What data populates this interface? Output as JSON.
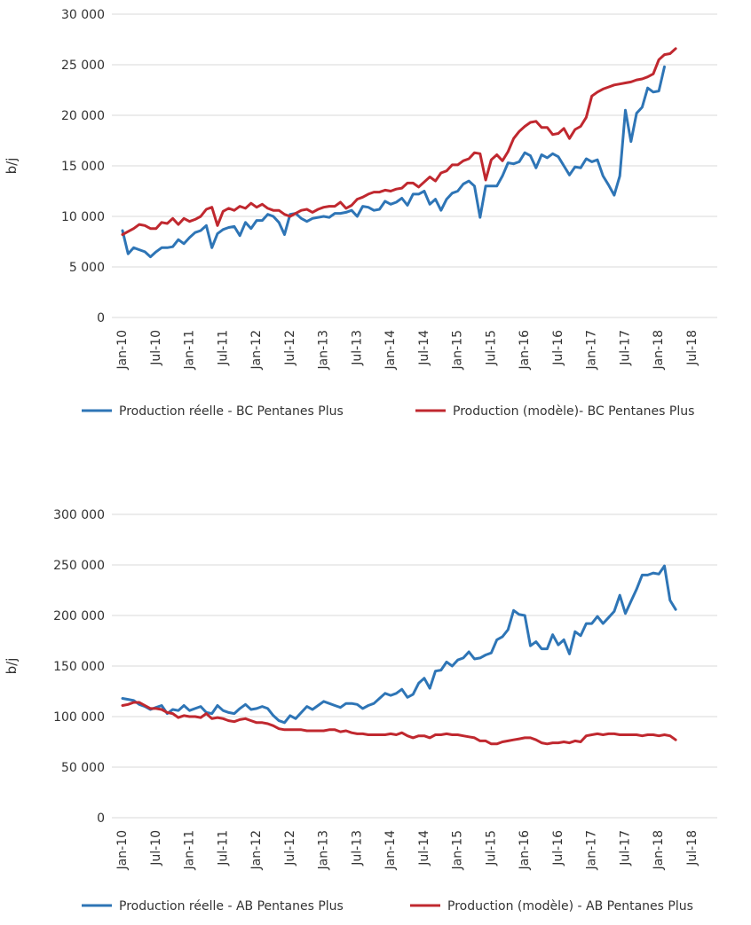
{
  "chart_data": [
    {
      "type": "line",
      "title": "",
      "ylabel": "b/j",
      "xlabel": "",
      "ylim": [
        0,
        30000
      ],
      "yticks": [
        "0",
        "5 000",
        "10 000",
        "15 000",
        "20 000",
        "25 000",
        "30 000"
      ],
      "x_tick_labels": [
        "Jan-10",
        "Jul-10",
        "Jan-11",
        "Jul-11",
        "Jan-12",
        "Jul-12",
        "Jan-13",
        "Jul-13",
        "Jan-14",
        "Jul-14",
        "Jan-15",
        "Jul-15",
        "Jan-16",
        "Jul-16",
        "Jan-17",
        "Jul-17",
        "Jan-18",
        "Jul-18"
      ],
      "legend_position": "bottom",
      "series": [
        {
          "name": "Production réelle - BC Pentanes Plus",
          "color": "#2e75b6",
          "values": [
            8600,
            6300,
            6900,
            6700,
            6500,
            6000,
            6500,
            6900,
            6900,
            7000,
            7700,
            7300,
            7900,
            8400,
            8600,
            9100,
            6900,
            8300,
            8700,
            8900,
            9000,
            8100,
            9400,
            8800,
            9600,
            9600,
            10200,
            10000,
            9400,
            8200,
            10200,
            10300,
            9800,
            9500,
            9800,
            9900,
            10000,
            9900,
            10300,
            10300,
            10400,
            10600,
            10000,
            11000,
            10900,
            10600,
            10700,
            11500,
            11200,
            11400,
            11800,
            11100,
            12200,
            12200,
            12500,
            11200,
            11700,
            10600,
            11700,
            12300,
            12500,
            13200,
            13500,
            13000,
            9900,
            13000,
            13000,
            13000,
            14000,
            15300,
            15200,
            15400,
            16300,
            16000,
            14800,
            16100,
            15800,
            16200,
            15900,
            15000,
            14100,
            14900,
            14800,
            15700,
            15400,
            15600,
            14000,
            13100,
            12100,
            14000,
            20500,
            17400,
            20200,
            20800,
            22700,
            22300,
            22400,
            24800
          ]
        },
        {
          "name": "Production (modèle)- BC Pentanes Plus",
          "color": "#c0282f",
          "values": [
            8200,
            8500,
            8800,
            9200,
            9100,
            8800,
            8800,
            9400,
            9300,
            9800,
            9200,
            9800,
            9500,
            9700,
            10000,
            10700,
            10900,
            9100,
            10500,
            10800,
            10600,
            11000,
            10800,
            11300,
            10900,
            11200,
            10800,
            10600,
            10600,
            10200,
            10000,
            10300,
            10600,
            10700,
            10400,
            10700,
            10900,
            11000,
            11000,
            11400,
            10800,
            11100,
            11700,
            11900,
            12200,
            12400,
            12400,
            12600,
            12500,
            12700,
            12800,
            13300,
            13300,
            12900,
            13400,
            13900,
            13500,
            14300,
            14500,
            15100,
            15100,
            15500,
            15700,
            16300,
            16200,
            13600,
            15600,
            16100,
            15500,
            16400,
            17700,
            18400,
            18900,
            19300,
            19400,
            18800,
            18800,
            18100,
            18200,
            18700,
            17700,
            18600,
            18900,
            19800,
            21900,
            22300,
            22600,
            22800,
            23000,
            23100,
            23200,
            23300,
            23500,
            23600,
            23800,
            24100,
            25500,
            26000,
            26100,
            26600
          ]
        }
      ]
    },
    {
      "type": "line",
      "title": "",
      "ylabel": "b/j",
      "xlabel": "",
      "ylim": [
        0,
        300000
      ],
      "yticks": [
        "0",
        "50 000",
        "100 000",
        "150 000",
        "200 000",
        "250 000",
        "300 000"
      ],
      "x_tick_labels": [
        "Jan-10",
        "Jul-10",
        "Jan-11",
        "Jul-11",
        "Jan-12",
        "Jul-12",
        "Jan-13",
        "Jul-13",
        "Jan-14",
        "Jul-14",
        "Jan-15",
        "Jul-15",
        "Jan-16",
        "Jul-16",
        "Jan-17",
        "Jul-17",
        "Jan-18",
        "Jul-18"
      ],
      "legend_position": "bottom",
      "series": [
        {
          "name": "Production réelle - AB Pentanes Plus",
          "color": "#2e75b6",
          "values": [
            118000,
            117000,
            116000,
            112000,
            110000,
            107000,
            109000,
            111000,
            103000,
            107000,
            106000,
            111000,
            106000,
            108000,
            110000,
            104000,
            103000,
            111000,
            106000,
            104000,
            103000,
            108000,
            112000,
            107000,
            108000,
            110000,
            108000,
            101000,
            96000,
            94000,
            101000,
            98000,
            104000,
            110000,
            107000,
            111000,
            115000,
            113000,
            111000,
            109000,
            113000,
            113000,
            112000,
            108000,
            111000,
            113000,
            118000,
            123000,
            121000,
            123000,
            127000,
            119000,
            122000,
            133000,
            138000,
            128000,
            145000,
            146000,
            154000,
            150000,
            156000,
            158000,
            164000,
            157000,
            158000,
            161000,
            163000,
            176000,
            179000,
            186000,
            205000,
            201000,
            200000,
            170000,
            174000,
            167000,
            167000,
            181000,
            171000,
            176000,
            162000,
            184000,
            180000,
            192000,
            192000,
            199000,
            192000,
            198000,
            204000,
            220000,
            202000,
            214000,
            226000,
            240000,
            240000,
            242000,
            241000,
            249000,
            215000,
            206000
          ]
        },
        {
          "name": "Production (modèle) - AB Pentanes Plus",
          "color": "#c0282f",
          "values": [
            111000,
            112000,
            114000,
            114000,
            111000,
            108000,
            108000,
            107000,
            104000,
            103000,
            99000,
            101000,
            100000,
            100000,
            99000,
            103000,
            98000,
            99000,
            98000,
            96000,
            95000,
            97000,
            98000,
            96000,
            94000,
            94000,
            93000,
            91000,
            88000,
            87000,
            87000,
            87000,
            87000,
            86000,
            86000,
            86000,
            86000,
            87000,
            87000,
            85000,
            86000,
            84000,
            83000,
            83000,
            82000,
            82000,
            82000,
            82000,
            83000,
            82000,
            84000,
            81000,
            79000,
            81000,
            81000,
            79000,
            82000,
            82000,
            83000,
            82000,
            82000,
            81000,
            80000,
            79000,
            76000,
            76000,
            73000,
            73000,
            75000,
            76000,
            77000,
            78000,
            79000,
            79000,
            77000,
            74000,
            73000,
            74000,
            74000,
            75000,
            74000,
            76000,
            75000,
            81000,
            82000,
            83000,
            82000,
            83000,
            83000,
            82000,
            82000,
            82000,
            82000,
            81000,
            82000,
            82000,
            81000,
            82000,
            81000,
            77000
          ]
        }
      ]
    }
  ]
}
